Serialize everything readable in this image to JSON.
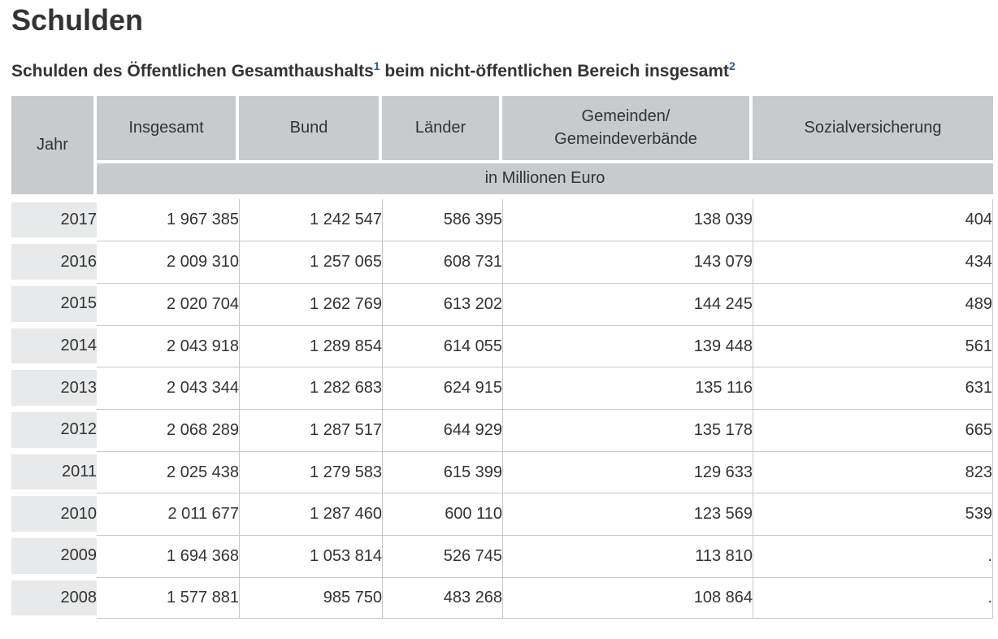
{
  "page": {
    "title": "Schulden",
    "subtitle": {
      "part1": "Schulden des Öffentlichen Gesamthaushalts",
      "footnote1": "1",
      "part2": " beim nicht-öffentlichen Bereich insgesamt",
      "footnote2": "2"
    }
  },
  "table": {
    "columns": {
      "jahr": "Jahr",
      "insgesamt": "Insgesamt",
      "bund": "Bund",
      "laender": "Länder",
      "gemeinden_line1": "Gemeinden/",
      "gemeinden_line2": "Gemeindeverbände",
      "sozialversicherung": "Sozialversicherung"
    },
    "unit_label": "in Millionen Euro",
    "rows": [
      [
        "2017",
        "1 967 385",
        "1 242 547",
        "586 395",
        "138 039",
        "404"
      ],
      [
        "2016",
        "2 009 310",
        "1 257 065",
        "608 731",
        "143 079",
        "434"
      ],
      [
        "2015",
        "2 020 704",
        "1 262 769",
        "613 202",
        "144 245",
        "489"
      ],
      [
        "2014",
        "2 043 918",
        "1 289 854",
        "614 055",
        "139 448",
        "561"
      ],
      [
        "2013",
        "2 043 344",
        "1 282 683",
        "624 915",
        "135 116",
        "631"
      ],
      [
        "2012",
        "2 068 289",
        "1 287 517",
        "644 929",
        "135 178",
        "665"
      ],
      [
        "2011",
        "2 025 438",
        "1 279 583",
        "615 399",
        "129 633",
        "823"
      ],
      [
        "2010",
        "2 011 677",
        "1 287 460",
        "600 110",
        "123 569",
        "539"
      ],
      [
        "2009",
        "1 694 368",
        "1 053 814",
        "526 745",
        "113 810",
        "."
      ],
      [
        "2008",
        "1 577 881",
        "985 750",
        "483 268",
        "108 864",
        "."
      ]
    ]
  },
  "colors": {
    "header_bg": "#c8cbce",
    "year_bg": "#e8e9ea",
    "grid": "#c8c8c8",
    "text": "#333333",
    "footnote": "#2a5d9c",
    "bg": "#ffffff"
  }
}
